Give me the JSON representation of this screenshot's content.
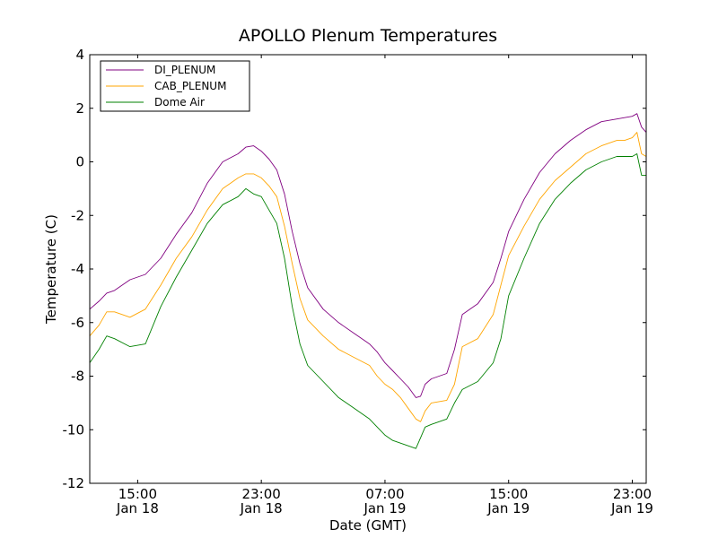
{
  "chart_data": {
    "type": "line",
    "title": "APOLLO Plenum Temperatures",
    "xlabel": "Date (GMT)",
    "ylabel": "Temperature (C)",
    "xlim": [
      11.9,
      47.9
    ],
    "ylim": [
      -12,
      4
    ],
    "x_unit": "hours since 00:00 Jan 18 (GMT)",
    "x_ticks": [
      {
        "value": 15,
        "time": "15:00",
        "date": "Jan 18"
      },
      {
        "value": 23,
        "time": "23:00",
        "date": "Jan 18"
      },
      {
        "value": 31,
        "time": "07:00",
        "date": "Jan 19"
      },
      {
        "value": 39,
        "time": "15:00",
        "date": "Jan 19"
      },
      {
        "value": 47,
        "time": "23:00",
        "date": "Jan 19"
      }
    ],
    "y_ticks": [
      {
        "value": 4,
        "label": "4"
      },
      {
        "value": 2,
        "label": "2"
      },
      {
        "value": 0,
        "label": "0"
      },
      {
        "value": -2,
        "label": "-2"
      },
      {
        "value": -4,
        "label": "-4"
      },
      {
        "value": -6,
        "label": "-6"
      },
      {
        "value": -8,
        "label": "-8"
      },
      {
        "value": -10,
        "label": "-10"
      },
      {
        "value": -12,
        "label": "-12"
      }
    ],
    "legend_position": "top-left",
    "series": [
      {
        "name": "DI_PLENUM",
        "color": "#800080",
        "x": [
          11.9,
          12.5,
          13.0,
          13.5,
          14.5,
          15.5,
          16.5,
          17.5,
          18.5,
          19.5,
          20.5,
          21.5,
          22.0,
          22.5,
          23.0,
          23.5,
          24.0,
          24.5,
          25.0,
          25.5,
          26.0,
          27.0,
          28.0,
          29.0,
          30.0,
          30.5,
          31.0,
          31.5,
          32.0,
          32.5,
          33.0,
          33.3,
          33.6,
          34.0,
          35.0,
          35.5,
          36.0,
          37.0,
          38.0,
          38.5,
          39.0,
          40.0,
          41.0,
          42.0,
          43.0,
          44.0,
          45.0,
          46.0,
          46.5,
          47.0,
          47.3,
          47.6,
          47.9
        ],
        "y": [
          -5.5,
          -5.2,
          -4.9,
          -4.8,
          -4.4,
          -4.2,
          -3.6,
          -2.7,
          -1.9,
          -0.8,
          0.0,
          0.3,
          0.55,
          0.6,
          0.4,
          0.1,
          -0.3,
          -1.2,
          -2.6,
          -3.8,
          -4.7,
          -5.5,
          -6.0,
          -6.4,
          -6.8,
          -7.1,
          -7.5,
          -7.8,
          -8.1,
          -8.4,
          -8.8,
          -8.75,
          -8.3,
          -8.1,
          -7.9,
          -7.0,
          -5.7,
          -5.3,
          -4.5,
          -3.6,
          -2.6,
          -1.4,
          -0.4,
          0.3,
          0.8,
          1.2,
          1.5,
          1.6,
          1.65,
          1.7,
          1.8,
          1.3,
          1.1
        ]
      },
      {
        "name": "CAB_PLENUM",
        "color": "#ffa500",
        "x": [
          11.9,
          12.5,
          13.0,
          13.5,
          14.5,
          15.5,
          16.5,
          17.5,
          18.5,
          19.5,
          20.5,
          21.5,
          22.0,
          22.5,
          23.0,
          23.5,
          24.0,
          24.5,
          25.0,
          25.5,
          26.0,
          27.0,
          28.0,
          29.0,
          30.0,
          30.5,
          31.0,
          31.5,
          32.0,
          32.5,
          33.0,
          33.3,
          33.6,
          34.0,
          35.0,
          35.5,
          36.0,
          37.0,
          38.0,
          38.5,
          39.0,
          40.0,
          41.0,
          42.0,
          43.0,
          44.0,
          45.0,
          46.0,
          46.5,
          47.0,
          47.3,
          47.6,
          47.9
        ],
        "y": [
          -6.5,
          -6.1,
          -5.6,
          -5.6,
          -5.8,
          -5.5,
          -4.6,
          -3.6,
          -2.8,
          -1.8,
          -1.0,
          -0.6,
          -0.45,
          -0.45,
          -0.6,
          -0.9,
          -1.3,
          -2.4,
          -3.8,
          -5.1,
          -5.9,
          -6.5,
          -7.0,
          -7.3,
          -7.6,
          -8.0,
          -8.3,
          -8.5,
          -8.8,
          -9.2,
          -9.6,
          -9.7,
          -9.3,
          -9.0,
          -8.9,
          -8.3,
          -6.9,
          -6.6,
          -5.7,
          -4.6,
          -3.5,
          -2.4,
          -1.4,
          -0.7,
          -0.2,
          0.3,
          0.6,
          0.8,
          0.8,
          0.9,
          1.1,
          0.3,
          0.2
        ]
      },
      {
        "name": "Dome Air",
        "color": "#008000",
        "x": [
          11.9,
          12.5,
          13.0,
          13.5,
          14.5,
          15.5,
          16.5,
          17.5,
          18.5,
          19.5,
          20.5,
          21.5,
          22.0,
          22.5,
          23.0,
          23.5,
          24.0,
          24.5,
          25.0,
          25.5,
          26.0,
          27.0,
          28.0,
          29.0,
          30.0,
          30.5,
          31.0,
          31.5,
          32.0,
          32.5,
          33.0,
          33.3,
          33.6,
          34.0,
          35.0,
          35.5,
          36.0,
          37.0,
          38.0,
          38.5,
          39.0,
          40.0,
          41.0,
          42.0,
          43.0,
          44.0,
          45.0,
          46.0,
          46.5,
          47.0,
          47.3,
          47.6,
          47.9
        ],
        "y": [
          -7.5,
          -7.0,
          -6.5,
          -6.6,
          -6.9,
          -6.8,
          -5.4,
          -4.3,
          -3.3,
          -2.3,
          -1.6,
          -1.3,
          -1.0,
          -1.2,
          -1.3,
          -1.8,
          -2.3,
          -3.6,
          -5.4,
          -6.8,
          -7.6,
          -8.2,
          -8.8,
          -9.2,
          -9.6,
          -9.9,
          -10.2,
          -10.4,
          -10.5,
          -10.6,
          -10.7,
          -10.3,
          -9.9,
          -9.8,
          -9.6,
          -9.0,
          -8.5,
          -8.2,
          -7.5,
          -6.6,
          -5.0,
          -3.6,
          -2.3,
          -1.4,
          -0.8,
          -0.3,
          0.0,
          0.2,
          0.2,
          0.2,
          0.3,
          -0.5,
          -0.5
        ]
      }
    ]
  }
}
